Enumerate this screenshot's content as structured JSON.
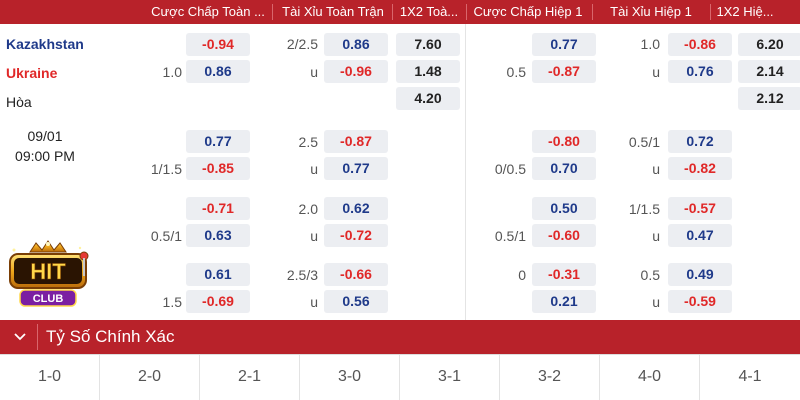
{
  "header": {
    "columns": [
      "Cược Chấp Toàn ...",
      "Tài Xỉu Toàn Trận",
      "1X2 Toà...",
      "Cược Chấp Hiệp 1",
      "Tài Xỉu Hiệp 1",
      "1X2 Hiệ..."
    ]
  },
  "match": {
    "home": "Kazakhstan",
    "away": "Ukraine",
    "draw_label": "Hòa",
    "date": "09/01",
    "time": "09:00 PM",
    "colors": {
      "home": "#1f3a8a",
      "away": "#e02828"
    }
  },
  "rows": [
    {
      "ft_hcp": {
        "line": "1.0",
        "home": "-0.94",
        "away": "0.86"
      },
      "ft_ou": {
        "line": "2/2.5",
        "under_label": "u",
        "over": "0.86",
        "under": "-0.96"
      },
      "ft_1x2": {
        "home": "7.60",
        "away": "1.48",
        "draw": "4.20"
      },
      "h1_hcp": {
        "line": "0.5",
        "home": "0.77",
        "away": "-0.87"
      },
      "h1_ou": {
        "line": "1.0",
        "under_label": "u",
        "over": "-0.86",
        "under": "0.76"
      },
      "h1_1x2": {
        "home": "6.20",
        "away": "2.14",
        "draw": "2.12"
      }
    },
    {
      "ft_hcp": {
        "line": "1/1.5",
        "home": "0.77",
        "away": "-0.85"
      },
      "ft_ou": {
        "line": "2.5",
        "under_label": "u",
        "over": "-0.87",
        "under": "0.77"
      },
      "h1_hcp": {
        "line": "0/0.5",
        "home": "-0.80",
        "away": "0.70"
      },
      "h1_ou": {
        "line": "0.5/1",
        "under_label": "u",
        "over": "0.72",
        "under": "-0.82"
      }
    },
    {
      "ft_hcp": {
        "line": "0.5/1",
        "home": "-0.71",
        "away": "0.63"
      },
      "ft_ou": {
        "line": "2.0",
        "under_label": "u",
        "over": "0.62",
        "under": "-0.72"
      },
      "h1_hcp": {
        "line": "0.5/1",
        "home": "0.50",
        "away": "-0.60"
      },
      "h1_ou": {
        "line": "1/1.5",
        "under_label": "u",
        "over": "-0.57",
        "under": "0.47"
      }
    },
    {
      "ft_hcp": {
        "line": "1.5",
        "home": "0.61",
        "away": "-0.69"
      },
      "ft_ou": {
        "line": "2.5/3",
        "under_label": "u",
        "over": "-0.66",
        "under": "0.56"
      },
      "h1_hcp": {
        "line": "0",
        "home": "-0.31",
        "away": "0.21"
      },
      "h1_ou": {
        "line": "0.5",
        "under_label": "u",
        "over": "0.49",
        "under": "-0.59"
      }
    }
  ],
  "logo": {
    "text_top": "HIT",
    "text_bottom": "CLUB"
  },
  "correct_score": {
    "title": "Tỷ Số Chính Xác",
    "icon": "chevron-down-icon",
    "scores": [
      "1-0",
      "2-0",
      "2-1",
      "3-0",
      "3-1",
      "3-2",
      "4-0",
      "4-1"
    ]
  },
  "theme": {
    "accent": "#b8222a",
    "cell_bg": "#eceef2",
    "positive": "#1f3a8a",
    "negative": "#e02828"
  }
}
